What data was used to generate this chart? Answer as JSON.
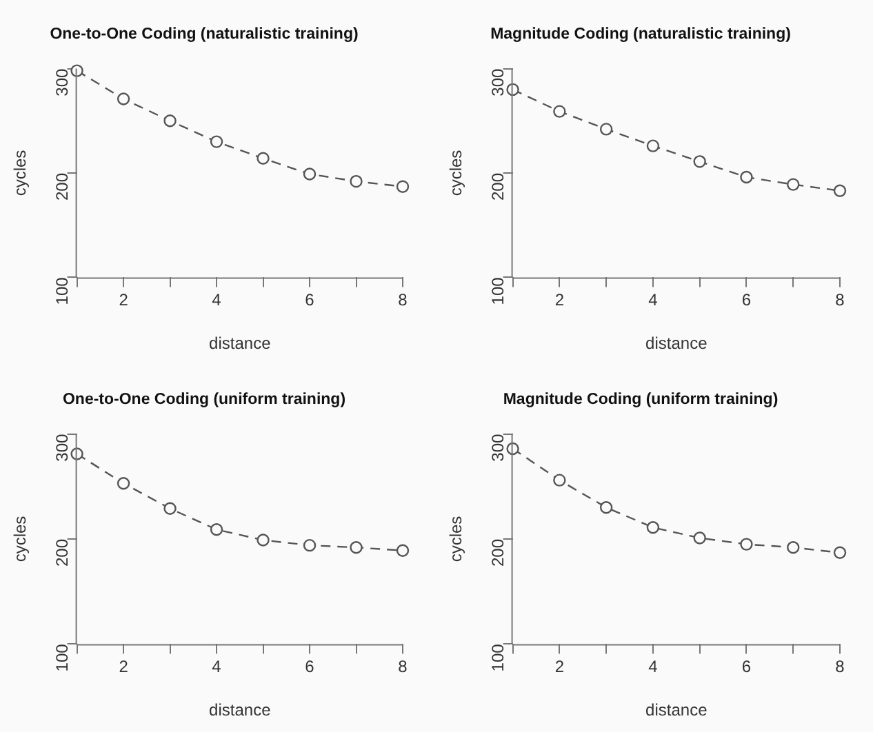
{
  "chart_data": [
    {
      "type": "line",
      "title": "One-to-One Coding (naturalistic training)",
      "xlabel": "distance",
      "ylabel": "cycles",
      "x": [
        1,
        2,
        3,
        4,
        5,
        6,
        7,
        8
      ],
      "values": [
        298,
        271,
        250,
        230,
        214,
        199,
        192,
        187
      ],
      "color": "#555555",
      "marker": "circle",
      "line_style": "dashed",
      "grid": false,
      "legend": false,
      "xlim": [
        1,
        8
      ],
      "ylim": [
        100,
        300
      ],
      "xticks": [
        {
          "value": 1,
          "label": null
        },
        2,
        {
          "value": 3,
          "label": null
        },
        4,
        {
          "value": 5,
          "label": null
        },
        6,
        {
          "value": 7,
          "label": null
        },
        8
      ],
      "yticks": [
        100,
        200,
        300
      ]
    },
    {
      "type": "line",
      "title": "Magnitude Coding (naturalistic training)",
      "xlabel": "distance",
      "ylabel": "cycles",
      "x": [
        1,
        2,
        3,
        4,
        5,
        6,
        7,
        8
      ],
      "values": [
        280,
        259,
        242,
        226,
        211,
        196,
        189,
        183
      ],
      "color": "#555555",
      "marker": "circle",
      "line_style": "dashed",
      "grid": false,
      "legend": false,
      "xlim": [
        1,
        8
      ],
      "ylim": [
        100,
        300
      ],
      "xticks": [
        {
          "value": 1,
          "label": null
        },
        2,
        {
          "value": 3,
          "label": null
        },
        4,
        {
          "value": 5,
          "label": null
        },
        6,
        {
          "value": 7,
          "label": null
        },
        8
      ],
      "yticks": [
        100,
        200,
        300
      ]
    },
    {
      "type": "line",
      "title": "One-to-One Coding (uniform training)",
      "xlabel": "distance",
      "ylabel": "cycles",
      "x": [
        1,
        2,
        3,
        4,
        5,
        6,
        7,
        8
      ],
      "values": [
        281,
        253,
        229,
        209,
        199,
        194,
        192,
        189
      ],
      "color": "#555555",
      "marker": "circle",
      "line_style": "dashed",
      "grid": false,
      "legend": false,
      "xlim": [
        1,
        8
      ],
      "ylim": [
        100,
        300
      ],
      "xticks": [
        {
          "value": 1,
          "label": null
        },
        2,
        {
          "value": 3,
          "label": null
        },
        4,
        {
          "value": 5,
          "label": null
        },
        6,
        {
          "value": 7,
          "label": null
        },
        8
      ],
      "yticks": [
        100,
        200,
        300
      ]
    },
    {
      "type": "line",
      "title": "Magnitude Coding (uniform training)",
      "xlabel": "distance",
      "ylabel": "cycles",
      "x": [
        1,
        2,
        3,
        4,
        5,
        6,
        7,
        8
      ],
      "values": [
        286,
        256,
        230,
        211,
        201,
        195,
        192,
        187
      ],
      "color": "#555555",
      "marker": "circle",
      "line_style": "dashed",
      "grid": false,
      "legend": false,
      "xlim": [
        1,
        8
      ],
      "ylim": [
        100,
        300
      ],
      "xticks": [
        {
          "value": 1,
          "label": null
        },
        2,
        {
          "value": 3,
          "label": null
        },
        4,
        {
          "value": 5,
          "label": null
        },
        6,
        {
          "value": 7,
          "label": null
        },
        8
      ],
      "yticks": [
        100,
        200,
        300
      ]
    }
  ]
}
